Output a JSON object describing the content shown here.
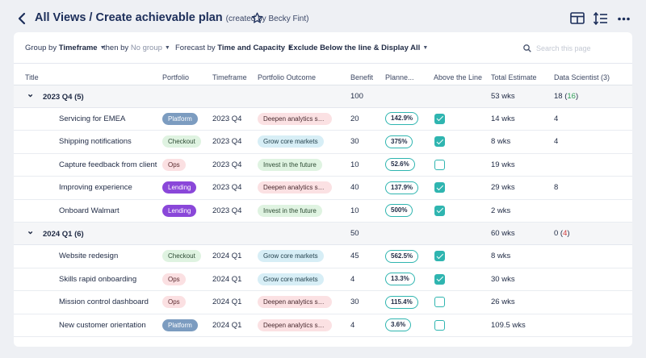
{
  "header": {
    "title": "All Views / Create achievable plan",
    "subtitle": "(created by Becky Fint)",
    "icons": [
      "back-arrow-icon",
      "star-icon",
      "layout-icon",
      "sort-icon",
      "more-icon"
    ]
  },
  "filters": {
    "group_prefix": "Group by",
    "group_value": "Timeframe",
    "then_prefix": "then by",
    "then_value": "No group",
    "forecast_prefix": "Forecast by",
    "forecast_value": "Time and Capacity",
    "exclude_label": "Exclude Below the line & Display All",
    "search_placeholder": "Search this page"
  },
  "columns": [
    "Title",
    "Portfolio",
    "Timeframe",
    "Portfolio Outcome",
    "Benefit",
    "Planne...",
    "Above the Line",
    "Total Estimate",
    "Data Scientist (3)"
  ],
  "colors": {
    "accent": "#2fb5b0",
    "platform": "#7c9cc0",
    "lending": "#8a47d9",
    "checkout_bg": "#dff3e1",
    "ops_bg": "#fbe0e2",
    "deepen_bg": "#fbe1e3",
    "grow_bg": "#d7eef6",
    "invest_bg": "#dff3e1"
  },
  "groups": [
    {
      "label": "2023 Q4 (5)",
      "benefit": "100",
      "estimate": "53 wks",
      "ds_main": "18",
      "ds_paren_open": " (",
      "ds_value": "16",
      "ds_paren_close": ")",
      "rows": [
        {
          "title": "Servicing for EMEA",
          "portfolio": "Platform",
          "pkey": "platform",
          "timeframe": "2023 Q4",
          "outcome": "Deepen analytics spa...",
          "okey": "deepen",
          "benefit": "20",
          "planned": "142.9%",
          "above": true,
          "estimate": "14 wks",
          "ds": "4"
        },
        {
          "title": "Shipping notifications",
          "portfolio": "Checkout",
          "pkey": "checkout",
          "timeframe": "2023 Q4",
          "outcome": "Grow core markets",
          "okey": "grow",
          "benefit": "30",
          "planned": "375%",
          "above": true,
          "estimate": "8 wks",
          "ds": "4"
        },
        {
          "title": "Capture feedback from client",
          "portfolio": "Ops",
          "pkey": "ops",
          "timeframe": "2023 Q4",
          "outcome": "Invest in the future",
          "okey": "invest",
          "benefit": "10",
          "planned": "52.6%",
          "above": false,
          "estimate": "19 wks",
          "ds": ""
        },
        {
          "title": "Improving experience",
          "portfolio": "Lending",
          "pkey": "lending",
          "timeframe": "2023 Q4",
          "outcome": "Deepen analytics spa...",
          "okey": "deepen",
          "benefit": "40",
          "planned": "137.9%",
          "above": true,
          "estimate": "29 wks",
          "ds": "8"
        },
        {
          "title": "Onboard Walmart",
          "portfolio": "Lending",
          "pkey": "lending",
          "timeframe": "2023 Q4",
          "outcome": "Invest in the future",
          "okey": "invest",
          "benefit": "10",
          "planned": "500%",
          "above": true,
          "estimate": "2 wks",
          "ds": ""
        }
      ]
    },
    {
      "label": "2024 Q1 (6)",
      "benefit": "50",
      "estimate": "60 wks",
      "ds_main": "0",
      "ds_paren_open": " (",
      "ds_value": "4",
      "ds_paren_close": ")",
      "rows": [
        {
          "title": "Website redesign",
          "portfolio": "Checkout",
          "pkey": "checkout",
          "timeframe": "2024 Q1",
          "outcome": "Grow core markets",
          "okey": "grow",
          "benefit": "45",
          "planned": "562.5%",
          "above": true,
          "estimate": "8 wks",
          "ds": ""
        },
        {
          "title": "Skills rapid onboarding",
          "portfolio": "Ops",
          "pkey": "ops",
          "timeframe": "2024 Q1",
          "outcome": "Grow core markets",
          "okey": "grow",
          "benefit": "4",
          "planned": "13.3%",
          "above": true,
          "estimate": "30 wks",
          "ds": ""
        },
        {
          "title": "Mission control dashboard",
          "portfolio": "Ops",
          "pkey": "ops",
          "timeframe": "2024 Q1",
          "outcome": "Deepen analytics spa...",
          "okey": "deepen",
          "benefit": "30",
          "planned": "115.4%",
          "above": false,
          "estimate": "26 wks",
          "ds": ""
        },
        {
          "title": "New customer orientation",
          "portfolio": "Platform",
          "pkey": "platform",
          "timeframe": "2024 Q1",
          "outcome": "Deepen analytics spa...",
          "okey": "deepen",
          "benefit": "4",
          "planned": "3.6%",
          "above": false,
          "estimate": "109.5 wks",
          "ds": ""
        }
      ]
    }
  ]
}
